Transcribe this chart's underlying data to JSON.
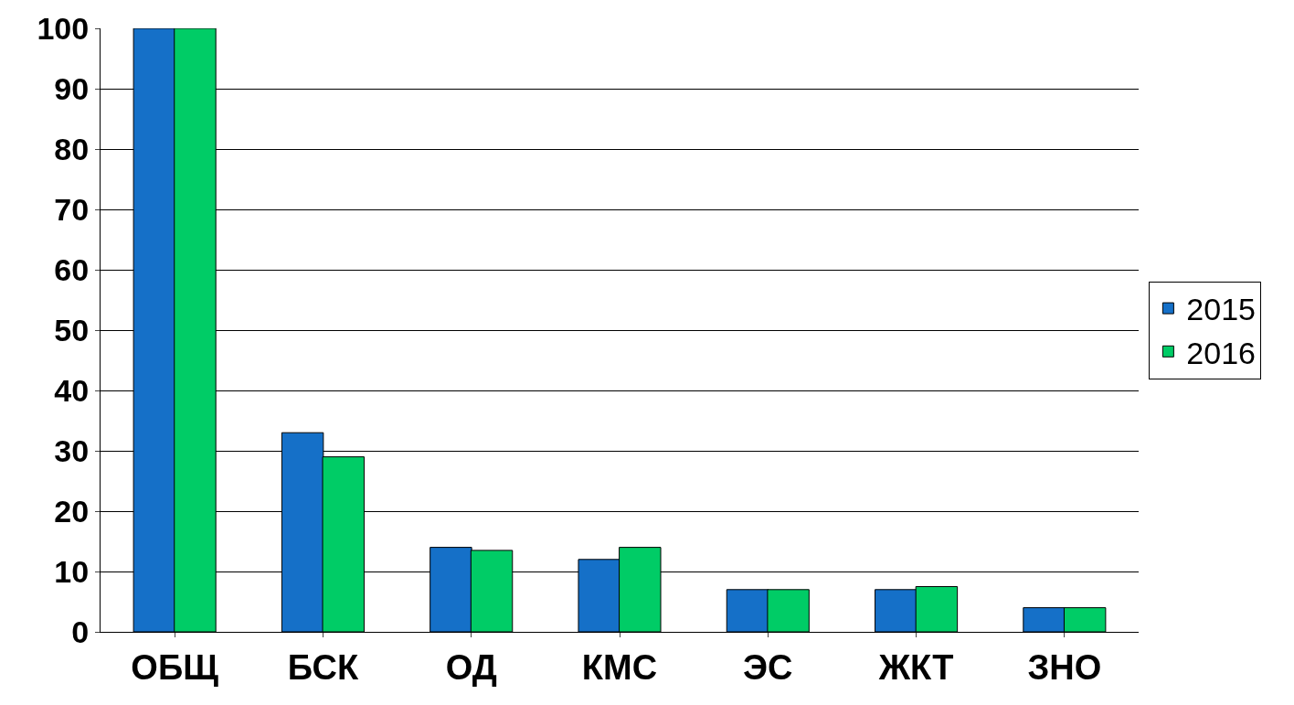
{
  "chart_data": {
    "type": "bar",
    "categories": [
      "ОБЩ",
      "БСК",
      "ОД",
      "КМС",
      "ЭС",
      "ЖКТ",
      "ЗНО"
    ],
    "series": [
      {
        "name": "2015",
        "color": "#1570c8",
        "values": [
          100,
          33,
          14,
          12,
          7,
          7,
          4
        ]
      },
      {
        "name": "2016",
        "color": "#00cc66",
        "values": [
          100,
          29,
          13.5,
          14,
          7,
          7.5,
          4
        ]
      }
    ],
    "ylim": [
      0,
      100
    ],
    "yticks": [
      0,
      10,
      20,
      30,
      40,
      50,
      60,
      70,
      80,
      90,
      100
    ],
    "grid": "y",
    "legend": "right"
  }
}
